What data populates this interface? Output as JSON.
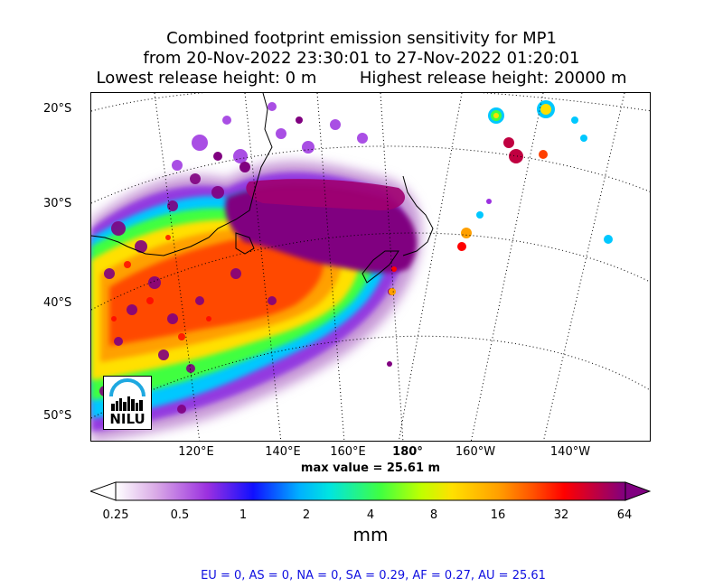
{
  "title": {
    "line1": "Combined footprint emission sensitivity for MP1",
    "line2": "from 20-Nov-2022 23:30:01 to 27-Nov-2022 01:20:01",
    "lowest": "Lowest release height: 0 m",
    "highest": "Highest release height: 20000 m"
  },
  "map": {
    "lat_labels": [
      "20°S",
      "30°S",
      "40°S",
      "50°S"
    ],
    "lon_labels": [
      "120°E",
      "140°E",
      "160°E",
      "180°",
      "160°W",
      "140°W"
    ],
    "max_value": "max value = 25.61 m",
    "logo_text": "NILU"
  },
  "colorbar": {
    "ticks": [
      "0.25",
      "0.5",
      "1",
      "2",
      "4",
      "8",
      "16",
      "32",
      "64"
    ],
    "unit": "mm",
    "colors": [
      "#ffffff",
      "#d9a9e6",
      "#9b30e0",
      "#1010ff",
      "#00b0ff",
      "#00e5e0",
      "#40ff40",
      "#c0ff00",
      "#ffe000",
      "#ffa000",
      "#ff5000",
      "#ff0000",
      "#c00040",
      "#800080"
    ]
  },
  "footer": "EU = 0,  AS = 0,  NA = 0,  SA = 0.29,  AF = 0.27,  AU = 25.61"
}
